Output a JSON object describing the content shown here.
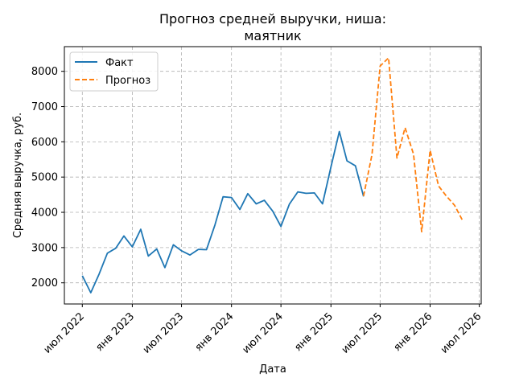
{
  "chart_data": {
    "type": "line",
    "title": "Прогноз средней выручки, ниша:",
    "subtitle": "маятник",
    "xlabel": "Дата",
    "ylabel": "Средняя выручка, руб.",
    "x_ticks": [
      "2022-07-01",
      "2023-01-01",
      "2023-07-01",
      "2024-01-01",
      "2024-07-01",
      "2025-01-01",
      "2025-07-01",
      "2026-01-01",
      "2026-07-01"
    ],
    "x_tick_labels": [
      "июл 2022",
      "янв 2023",
      "июл 2023",
      "янв 2024",
      "июл 2024",
      "янв 2025",
      "июл 2025",
      "янв 2026",
      "июл 2026"
    ],
    "y_ticks": [
      2000,
      3000,
      4000,
      5000,
      6000,
      7000,
      8000
    ],
    "y_tick_labels": [
      "2000",
      "3000",
      "4000",
      "5000",
      "6000",
      "7000",
      "8000"
    ],
    "xlim": [
      "2022-04-26",
      "2026-07-08"
    ],
    "ylim": [
      1400,
      8700
    ],
    "grid": true,
    "legend_position": "top-left",
    "series": [
      {
        "name": "Факт",
        "color": "#1f77b4",
        "style": "solid",
        "points": [
          [
            "2022-07-01",
            2200
          ],
          [
            "2022-08-01",
            1720
          ],
          [
            "2022-09-01",
            2250
          ],
          [
            "2022-10-01",
            2840
          ],
          [
            "2022-11-01",
            2980
          ],
          [
            "2022-12-01",
            3330
          ],
          [
            "2023-01-01",
            3020
          ],
          [
            "2023-02-01",
            3520
          ],
          [
            "2023-03-01",
            2760
          ],
          [
            "2023-04-01",
            2960
          ],
          [
            "2023-05-01",
            2430
          ],
          [
            "2023-06-01",
            3080
          ],
          [
            "2023-07-01",
            2910
          ],
          [
            "2023-08-01",
            2790
          ],
          [
            "2023-09-01",
            2950
          ],
          [
            "2023-10-01",
            2940
          ],
          [
            "2023-11-01",
            3640
          ],
          [
            "2023-12-01",
            4440
          ],
          [
            "2024-01-01",
            4420
          ],
          [
            "2024-02-01",
            4080
          ],
          [
            "2024-03-01",
            4530
          ],
          [
            "2024-04-01",
            4240
          ],
          [
            "2024-05-01",
            4340
          ],
          [
            "2024-06-01",
            4030
          ],
          [
            "2024-07-01",
            3600
          ],
          [
            "2024-08-01",
            4230
          ],
          [
            "2024-09-01",
            4580
          ],
          [
            "2024-10-01",
            4540
          ],
          [
            "2024-11-01",
            4550
          ],
          [
            "2024-12-01",
            4240
          ],
          [
            "2025-01-01",
            5290
          ],
          [
            "2025-02-01",
            6290
          ],
          [
            "2025-03-01",
            5460
          ],
          [
            "2025-04-01",
            5320
          ],
          [
            "2025-05-01",
            4450
          ]
        ]
      },
      {
        "name": "Прогноз",
        "color": "#ff7f0e",
        "style": "dashed",
        "points": [
          [
            "2025-05-01",
            4460
          ],
          [
            "2025-06-01",
            5640
          ],
          [
            "2025-07-01",
            8150
          ],
          [
            "2025-08-01",
            8380
          ],
          [
            "2025-09-01",
            5540
          ],
          [
            "2025-10-01",
            6400
          ],
          [
            "2025-11-01",
            5650
          ],
          [
            "2025-12-01",
            3450
          ],
          [
            "2026-01-01",
            5760
          ],
          [
            "2026-02-01",
            4750
          ],
          [
            "2026-03-01",
            4470
          ],
          [
            "2026-04-01",
            4200
          ],
          [
            "2026-05-01",
            3760
          ]
        ]
      }
    ]
  }
}
